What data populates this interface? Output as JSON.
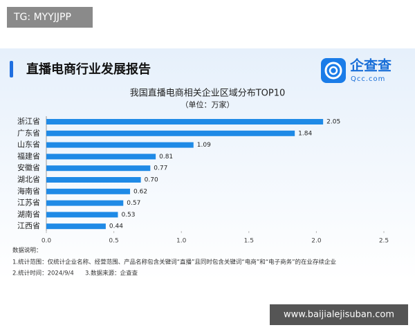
{
  "watermark": "TG: MYYJJPP",
  "report_title": "直播电商行业发展报告",
  "logo": {
    "name": "企查查",
    "domain": "Qcc.com"
  },
  "chart_data": {
    "type": "hbar",
    "title": "我国直播电商相关企业区域分布TOP10",
    "subtitle": "（单位：万家）",
    "categories": [
      "浙江省",
      "广东省",
      "山东省",
      "福建省",
      "安徽省",
      "湖北省",
      "海南省",
      "江苏省",
      "湖南省",
      "江西省"
    ],
    "values": [
      2.05,
      1.84,
      1.09,
      0.81,
      0.77,
      0.7,
      0.62,
      0.57,
      0.53,
      0.44
    ],
    "value_labels": [
      "2.05",
      "1.84",
      "1.09",
      "0.81",
      "0.77",
      "0.70",
      "0.62",
      "0.57",
      "0.53",
      "0.44"
    ],
    "color": "#1f8ae6",
    "xlim": [
      0,
      2.5
    ],
    "xticks": [
      {
        "value": 0,
        "label": "0.0"
      },
      0.5,
      {
        "value": 1,
        "label": "1.0"
      },
      1.5,
      {
        "value": 2,
        "label": "2.0"
      },
      2.5
    ]
  },
  "notes": [
    "数据说明：",
    "1.统计范围：仅统计企业名称、经营范围、产品名称包含关键词“直播”且同时包含关键词“电商”和“电子商务”的在业存续企业",
    "2.统计时间：2024/9/4",
    "3.数据来源：企查查"
  ],
  "footer_watermark": "www.baijialejisuban.com"
}
